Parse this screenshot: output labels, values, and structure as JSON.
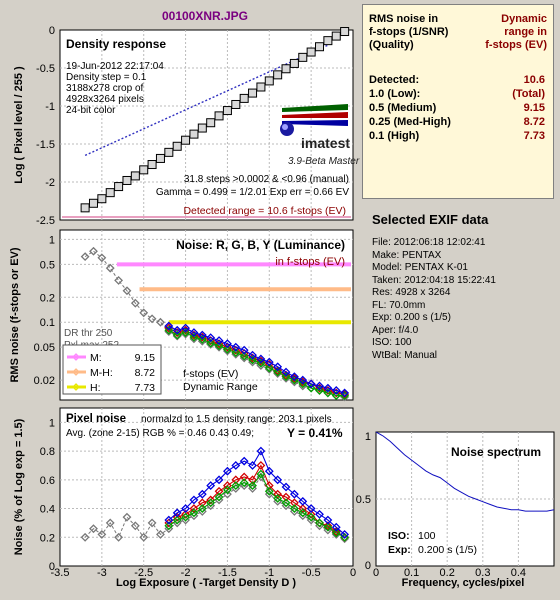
{
  "title": "00100XNR.JPG",
  "density_panel": {
    "title": "Density response",
    "info_lines": [
      "19-Jun-2012 22:17:04",
      "Density step = 0.1",
      "3188x278 crop of",
      "4928x3264 pixels",
      "24-bit color"
    ],
    "brand": "imatest",
    "brand_sub": "3.9-Beta  Master",
    "stats_lines": [
      "31.8 steps >0.0002 & <0.96 (manual)",
      "Gamma = 0.499 = 1/2.01  Exp err = 0.66 EV"
    ],
    "detected_range": "Detected range = 10.6 f-stops (EV)",
    "ylabel": "Log ( Pixel level / 255 )",
    "ylim": [
      -2.5,
      0
    ],
    "yticks": [
      "0",
      "-0.5",
      "-1",
      "-1.5",
      "-2",
      "-2.5"
    ]
  },
  "noise_panel": {
    "title": "Noise: R, G, B, Y (Luminance)",
    "subtitle": "in f-stops (EV)",
    "ylabel": "RMS noise (f-stops or EV)",
    "yticks": [
      "1",
      "0.5",
      "0.2",
      "0.1",
      "0.05",
      "0.02"
    ],
    "dr_line1": "DR thr 250",
    "dr_line2": "Pxl max 252",
    "legend": [
      {
        "label": "M:",
        "value": "9.15",
        "color": "#ff88ff"
      },
      {
        "label": "M-H:",
        "value": "8.72",
        "color": "#ffbb88"
      },
      {
        "label": "H:",
        "value": "7.73",
        "color": "#e8e800"
      }
    ],
    "fstops_label": "f-stops (EV)",
    "dr_label": "Dynamic Range"
  },
  "pixel_panel": {
    "title": "Pixel noise",
    "note": "normalzd to 1.5 density range: 203.1 pixels",
    "avg_line": "Avg. (zone 2-15) RGB % = 0.46  0.43  0.49;",
    "y_line": "Y = 0.41%",
    "ylabel": "Noise (% of Log exp = 1.5)",
    "yticks": [
      "1",
      "0.8",
      "0.6",
      "0.4",
      "0.2",
      "0"
    ]
  },
  "shared_x": {
    "xlabel": "Log Exposure ( -Target Density D )",
    "xticks": [
      "-3.5",
      "-3",
      "-2.5",
      "-2",
      "-1.5",
      "-1",
      "-0.5",
      "0"
    ]
  },
  "summary": {
    "header_left": [
      "RMS noise in",
      "f-stops (1/SNR)",
      "(Quality)"
    ],
    "header_right": [
      "Dynamic",
      "range in",
      "f-stops (EV)"
    ],
    "rows": [
      {
        "label": "Detected:",
        "value": "10.6"
      },
      {
        "label": "1.0  (Low):",
        "value": "(Total)"
      },
      {
        "label": "0.5  (Medium)",
        "value": "9.15"
      },
      {
        "label": "0.25 (Med-High)",
        "value": "8.72"
      },
      {
        "label": "0.1  (High)",
        "value": "7.73"
      }
    ]
  },
  "exif": {
    "title": "Selected EXIF data",
    "lines": [
      "File:  2012:06:18 12:02:41",
      "Make:  PENTAX",
      "Model: PENTAX K-01",
      "Taken:  2012:04:18 15:22:41",
      "Res:    4928 x 3264",
      "FL:  70.0mm",
      "Exp:  0.200 s  (1/5)",
      "Aper:  f/4.0",
      "ISO:   100",
      "WtBal: Manual"
    ]
  },
  "spectrum": {
    "title": "Noise spectrum",
    "xlabel": "Frequency, cycles/pixel",
    "xticks": [
      "0",
      "0.1",
      "0.2",
      "0.3",
      "0.4"
    ],
    "ytick_top": "1",
    "ytick_mid": "0.5",
    "ytick_bot": "0",
    "iso_label": "ISO:",
    "iso_value": "100",
    "exp_label": "Exp:",
    "exp_value": "0.200 s   (1/5)"
  },
  "colors": {
    "noise_red": "#d00000",
    "noise_green": "#00a000",
    "noise_blue": "#0000e0",
    "noise_gray": "#777777",
    "dynamic_range_red": "#8b0000"
  },
  "chart_data": [
    {
      "type": "line",
      "title": "Density response",
      "xlabel": "Log Exposure ( -Target Density D )",
      "ylabel": "Log ( Pixel level / 255 )",
      "xlim": [
        -3.5,
        0
      ],
      "ylim": [
        -2.5,
        0
      ],
      "series": [
        {
          "name": "",
          "x": [
            -3.2,
            -3.1,
            -3.0,
            -2.9,
            -2.8,
            -2.7,
            -2.6,
            -2.5,
            -2.4,
            -2.3,
            -2.2,
            -2.1,
            -2.0,
            -1.9,
            -1.8,
            -1.7,
            -1.6,
            -1.5,
            -1.4,
            -1.3,
            -1.2,
            -1.1,
            -1.0,
            -0.9,
            -0.8,
            -0.7,
            -0.6,
            -0.5,
            -0.4,
            -0.3,
            -0.2,
            -0.1
          ],
          "y": [
            -2.34,
            -2.28,
            -2.22,
            -2.14,
            -2.06,
            -1.98,
            -1.92,
            -1.84,
            -1.77,
            -1.69,
            -1.61,
            -1.53,
            -1.45,
            -1.37,
            -1.29,
            -1.22,
            -1.13,
            -1.06,
            -0.98,
            -0.9,
            -0.83,
            -0.75,
            -0.67,
            -0.59,
            -0.51,
            -0.44,
            -0.36,
            -0.29,
            -0.22,
            -0.14,
            -0.08,
            -0.02
          ]
        }
      ],
      "fit_line": {
        "x": [
          -3.2,
          -0.3
        ],
        "y": [
          -1.65,
          -0.2
        ]
      }
    },
    {
      "type": "line",
      "title": "Noise: R, G, B, Y (Luminance)",
      "ylabel": "RMS noise (f-stops or EV)",
      "xlim": [
        -3.5,
        0
      ],
      "yscale": "log",
      "ylim": [
        0.0115,
        1.3
      ],
      "x": [
        -3.2,
        -3.1,
        -3.0,
        -2.9,
        -2.8,
        -2.7,
        -2.6,
        -2.5,
        -2.4,
        -2.3,
        -2.2,
        -2.1,
        -2.0,
        -1.9,
        -1.8,
        -1.7,
        -1.6,
        -1.5,
        -1.4,
        -1.3,
        -1.2,
        -1.1,
        -1.0,
        -0.9,
        -0.8,
        -0.7,
        -0.6,
        -0.5,
        -0.4,
        -0.3,
        -0.2,
        -0.1
      ],
      "series": [
        {
          "name": "R",
          "color": "#d00000",
          "values": [
            null,
            null,
            null,
            null,
            null,
            null,
            null,
            null,
            null,
            null,
            0.085,
            0.075,
            0.08,
            0.07,
            0.066,
            0.06,
            0.055,
            0.05,
            0.046,
            0.042,
            0.037,
            0.034,
            0.031,
            0.026,
            0.023,
            0.021,
            0.019,
            0.018,
            0.016,
            0.015,
            0.014,
            0.0135
          ]
        },
        {
          "name": "G",
          "color": "#00a000",
          "values": [
            null,
            null,
            null,
            null,
            null,
            null,
            null,
            null,
            null,
            null,
            0.08,
            0.07,
            0.075,
            0.066,
            0.062,
            0.056,
            0.052,
            0.047,
            0.043,
            0.039,
            0.035,
            0.032,
            0.028,
            0.025,
            0.022,
            0.02,
            0.018,
            0.016,
            0.015,
            0.014,
            0.013,
            0.013
          ]
        },
        {
          "name": "B",
          "color": "#0000e0",
          "values": [
            null,
            null,
            null,
            null,
            null,
            null,
            null,
            null,
            null,
            null,
            0.09,
            0.08,
            0.085,
            0.075,
            0.07,
            0.065,
            0.06,
            0.055,
            0.05,
            0.046,
            0.04,
            0.036,
            0.033,
            0.029,
            0.025,
            0.022,
            0.02,
            0.018,
            0.017,
            0.016,
            0.015,
            0.014
          ]
        },
        {
          "name": "Y",
          "color": "#777777",
          "values": [
            0.62,
            0.72,
            0.6,
            0.45,
            0.32,
            0.24,
            0.17,
            0.13,
            0.11,
            0.1,
            0.077,
            0.068,
            0.072,
            0.063,
            0.059,
            0.054,
            0.05,
            0.045,
            0.041,
            0.037,
            0.033,
            0.03,
            0.027,
            0.024,
            0.021,
            0.019,
            0.017,
            0.016,
            0.015,
            0.014,
            0.013,
            0.0125
          ]
        }
      ],
      "thresholds": [
        {
          "label": "M:",
          "y": 0.5,
          "x_start": -2.82
        },
        {
          "label": "M-H:",
          "y": 0.25,
          "x_start": -2.55
        },
        {
          "label": "H:",
          "y": 0.1,
          "x_start": -2.2
        }
      ]
    },
    {
      "type": "line",
      "title": "Pixel noise",
      "ylabel": "Noise (% of Log exp = 1.5)",
      "xlabel": "Log Exposure ( -Target Density D )",
      "xlim": [
        -3.5,
        0
      ],
      "ylim": [
        0,
        1.1
      ],
      "x": [
        -3.2,
        -3.1,
        -3.0,
        -2.9,
        -2.8,
        -2.7,
        -2.6,
        -2.5,
        -2.4,
        -2.3,
        -2.2,
        -2.1,
        -2.0,
        -1.9,
        -1.8,
        -1.7,
        -1.6,
        -1.5,
        -1.4,
        -1.3,
        -1.2,
        -1.1,
        -1.0,
        -0.9,
        -0.8,
        -0.7,
        -0.6,
        -0.5,
        -0.4,
        -0.3,
        -0.2,
        -0.1
      ],
      "series": [
        {
          "name": "R",
          "color": "#d00000",
          "values": [
            null,
            null,
            null,
            null,
            null,
            null,
            null,
            null,
            null,
            null,
            0.3,
            0.34,
            0.36,
            0.4,
            0.44,
            0.46,
            0.52,
            0.56,
            0.6,
            0.62,
            0.6,
            0.7,
            0.56,
            0.5,
            0.48,
            0.44,
            0.4,
            0.36,
            0.3,
            0.28,
            0.24,
            0.2
          ]
        },
        {
          "name": "G",
          "color": "#00a000",
          "values": [
            null,
            null,
            null,
            null,
            null,
            null,
            null,
            null,
            null,
            null,
            0.28,
            0.32,
            0.34,
            0.37,
            0.4,
            0.44,
            0.48,
            0.53,
            0.56,
            0.58,
            0.56,
            0.64,
            0.52,
            0.47,
            0.44,
            0.4,
            0.37,
            0.34,
            0.3,
            0.27,
            0.23,
            0.2
          ]
        },
        {
          "name": "B",
          "color": "#0000e0",
          "values": [
            null,
            null,
            null,
            null,
            null,
            null,
            null,
            null,
            null,
            null,
            0.32,
            0.37,
            0.4,
            0.46,
            0.5,
            0.56,
            0.6,
            0.66,
            0.7,
            0.73,
            0.7,
            0.8,
            0.66,
            0.6,
            0.55,
            0.5,
            0.45,
            0.4,
            0.36,
            0.32,
            0.27,
            0.22
          ]
        },
        {
          "name": "Y",
          "color": "#777777",
          "values": [
            0.2,
            0.26,
            0.22,
            0.3,
            0.2,
            0.34,
            0.28,
            0.2,
            0.3,
            0.22,
            0.26,
            0.3,
            0.32,
            0.35,
            0.38,
            0.42,
            0.46,
            0.5,
            0.54,
            0.56,
            0.54,
            0.62,
            0.5,
            0.45,
            0.42,
            0.38,
            0.35,
            0.32,
            0.28,
            0.25,
            0.22,
            0.19
          ]
        }
      ]
    },
    {
      "type": "line",
      "title": "Noise spectrum",
      "xlabel": "Frequency, cycles/pixel",
      "xlim": [
        0,
        0.5
      ],
      "ylim": [
        0,
        1
      ],
      "series": [
        {
          "name": "",
          "x": [
            0,
            0.02,
            0.04,
            0.06,
            0.08,
            0.1,
            0.12,
            0.14,
            0.16,
            0.18,
            0.2,
            0.22,
            0.24,
            0.26,
            0.28,
            0.3,
            0.32,
            0.34,
            0.36,
            0.38,
            0.4,
            0.42,
            0.44,
            0.46,
            0.48,
            0.5
          ],
          "y": [
            1.0,
            0.97,
            0.93,
            0.88,
            0.83,
            0.79,
            0.75,
            0.71,
            0.68,
            0.66,
            0.62,
            0.58,
            0.55,
            0.52,
            0.5,
            0.48,
            0.46,
            0.44,
            0.43,
            0.42,
            0.42,
            0.41,
            0.41,
            0.41,
            0.41,
            0.42
          ]
        }
      ]
    }
  ]
}
